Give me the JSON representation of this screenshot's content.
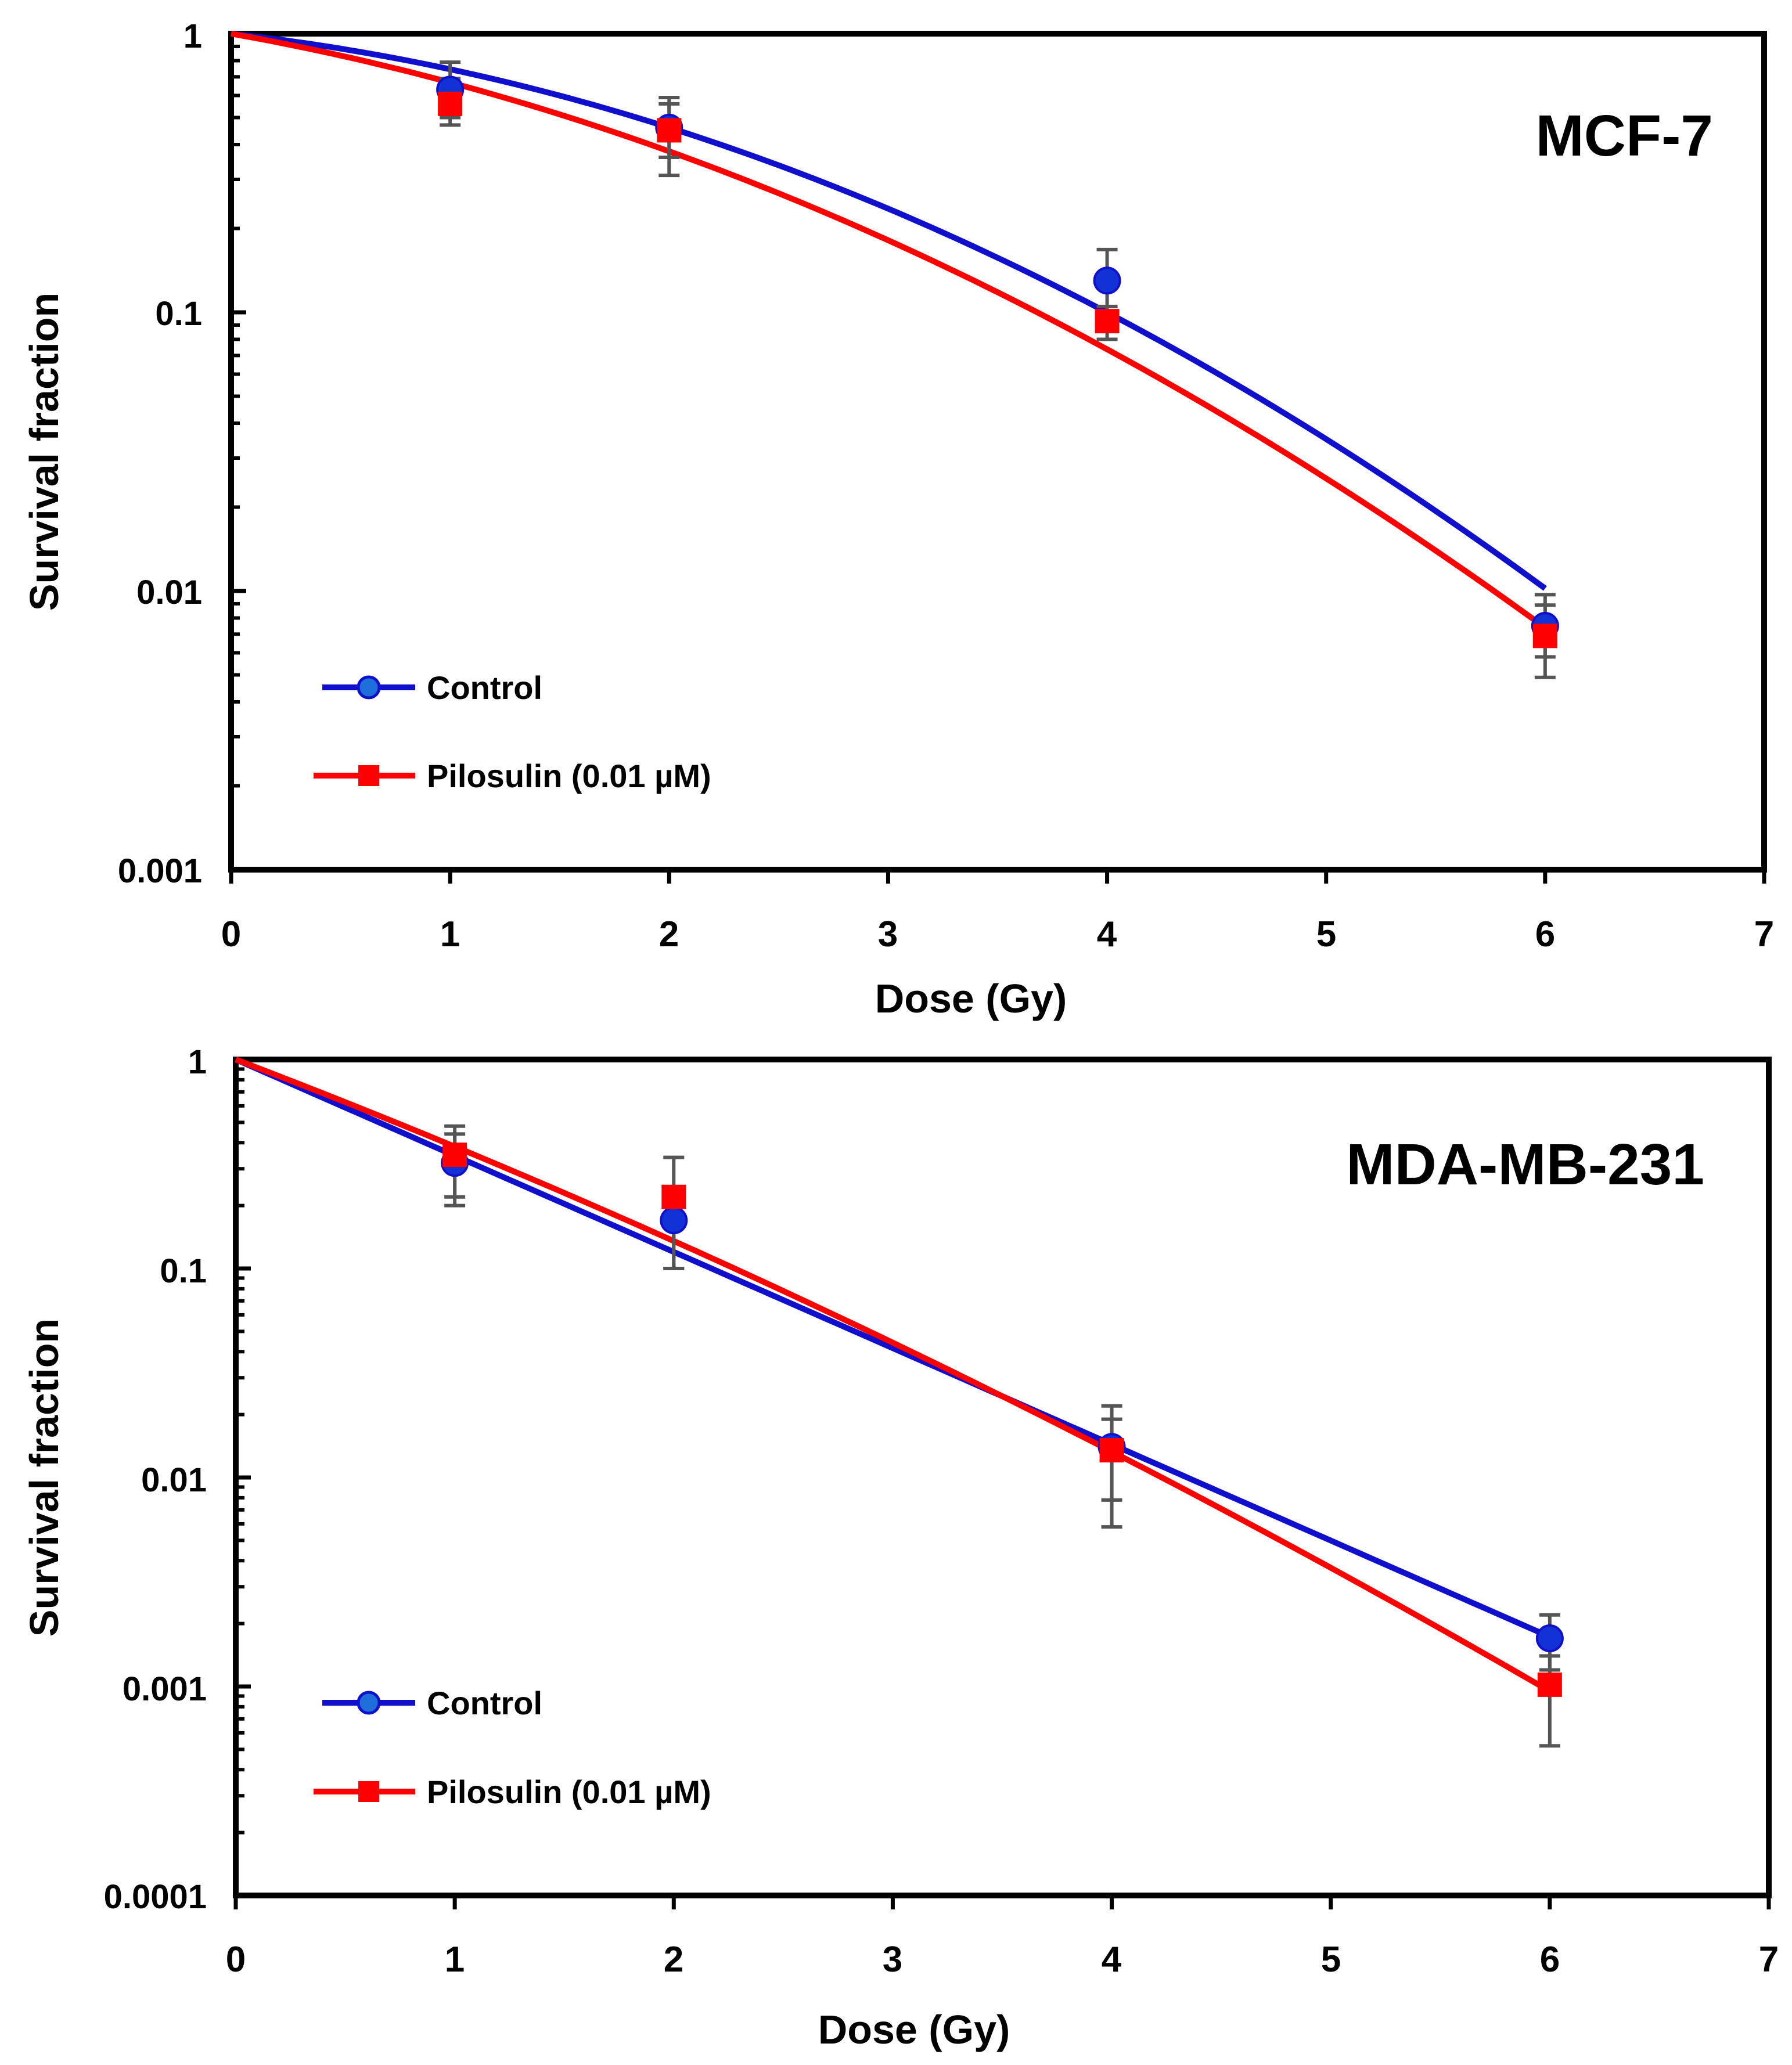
{
  "colors": {
    "control": "#0f0fcc",
    "pilosulin": "#ff0000",
    "errorbar": "#555555",
    "axis": "#000000"
  },
  "chart_data": [
    {
      "type": "scatter",
      "panel_label": "MCF-7",
      "xlabel": "Dose (Gy)",
      "ylabel": "Survival fraction",
      "xlim": [
        0,
        7
      ],
      "ylim": [
        0.001,
        1
      ],
      "yscale": "log",
      "x_ticks": [
        "0",
        "1",
        "2",
        "3",
        "4",
        "5",
        "6",
        "7"
      ],
      "y_ticks": [
        "0.001",
        "0.01",
        "0.1",
        "1"
      ],
      "legend_position": "bottom-left",
      "series": [
        {
          "name": "Control",
          "marker": "circle",
          "color_key": "control",
          "points": [
            {
              "x": 1,
              "y": 0.63,
              "err_low": 0.5,
              "err_high": 0.79
            },
            {
              "x": 2,
              "y": 0.46,
              "err_low": 0.36,
              "err_high": 0.59
            },
            {
              "x": 4,
              "y": 0.13,
              "err_low": 0.1,
              "err_high": 0.168
            },
            {
              "x": 6,
              "y": 0.0075,
              "err_low": 0.0058,
              "err_high": 0.0097
            }
          ],
          "fit": {
            "model": "LQ",
            "alpha": 0.2,
            "beta": 0.094
          }
        },
        {
          "name": "Pilosulin (0.01 µM)",
          "marker": "square",
          "color_key": "pilosulin",
          "points": [
            {
              "x": 1,
              "y": 0.56,
              "err_low": 0.47,
              "err_high": 0.69
            },
            {
              "x": 2,
              "y": 0.45,
              "err_low": 0.31,
              "err_high": 0.56
            },
            {
              "x": 4,
              "y": 0.093,
              "err_low": 0.08,
              "err_high": 0.105
            },
            {
              "x": 6,
              "y": 0.0069,
              "err_low": 0.0049,
              "err_high": 0.0089
            }
          ],
          "fit": {
            "model": "LQ",
            "alpha": 0.32,
            "beta": 0.083
          }
        }
      ]
    },
    {
      "type": "scatter",
      "panel_label": "MDA-MB-231",
      "xlabel": "Dose (Gy)",
      "ylabel": "Survival fraction",
      "xlim": [
        0,
        7
      ],
      "ylim": [
        0.0001,
        1
      ],
      "yscale": "log",
      "x_ticks": [
        "0",
        "1",
        "2",
        "3",
        "4",
        "5",
        "6",
        "7"
      ],
      "y_ticks": [
        "0.0001",
        "0.001",
        "0.01",
        "0.1",
        "1"
      ],
      "legend_position": "bottom-left",
      "series": [
        {
          "name": "Control",
          "marker": "circle",
          "color_key": "control",
          "points": [
            {
              "x": 1,
              "y": 0.32,
              "err_low": 0.2,
              "err_high": 0.44
            },
            {
              "x": 2,
              "y": 0.17,
              "err_low": 0.1,
              "err_high": 0.24
            },
            {
              "x": 4,
              "y": 0.014,
              "err_low": 0.0078,
              "err_high": 0.022
            },
            {
              "x": 6,
              "y": 0.0017,
              "err_low": 0.0012,
              "err_high": 0.0022
            }
          ],
          "fit": {
            "model": "LQ",
            "alpha": 1.06,
            "beta": 0.0
          }
        },
        {
          "name": "Pilosulin (0.01 µM)",
          "marker": "square",
          "color_key": "pilosulin",
          "points": [
            {
              "x": 1,
              "y": 0.35,
              "err_low": 0.22,
              "err_high": 0.48
            },
            {
              "x": 2,
              "y": 0.22,
              "err_low": 0.1,
              "err_high": 0.34
            },
            {
              "x": 4,
              "y": 0.0135,
              "err_low": 0.0058,
              "err_high": 0.019
            },
            {
              "x": 6,
              "y": 0.00102,
              "err_low": 0.00052,
              "err_high": 0.0014
            }
          ],
          "fit": {
            "model": "LQ",
            "alpha": 0.92,
            "beta": 0.04
          }
        }
      ]
    }
  ]
}
